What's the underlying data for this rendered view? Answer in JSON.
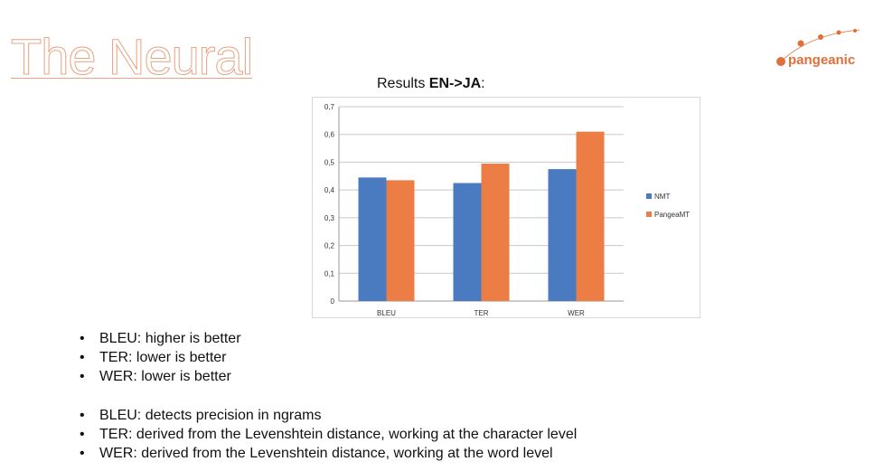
{
  "slide": {
    "title": "The Neural"
  },
  "logo": {
    "text": "pangeanic"
  },
  "chart_heading": {
    "prefix": "Results ",
    "bold": "EN->JA",
    "suffix": ":"
  },
  "colors": {
    "title_outline": "#e9a383",
    "nmt": "#4a7ac0",
    "pangea": "#ec7d45",
    "logo": "#e0703a"
  },
  "chart_data": {
    "type": "bar",
    "title": "Results EN->JA:",
    "categories": [
      "BLEU",
      "TER",
      "WER"
    ],
    "series": [
      {
        "name": "NMT",
        "values": [
          0.445,
          0.425,
          0.475
        ],
        "color": "#4a7ac0"
      },
      {
        "name": "PangeaMT",
        "values": [
          0.435,
          0.495,
          0.61
        ],
        "color": "#ec7d45"
      }
    ],
    "ylim": [
      0,
      0.7
    ],
    "yticks": [
      "0",
      "0,1",
      "0,2",
      "0,3",
      "0,4",
      "0,5",
      "0,6",
      "0,7"
    ],
    "grid": true,
    "legend_position": "right"
  },
  "bullets_group1": [
    "BLEU: higher is better",
    "TER: lower is better",
    "WER: lower is better"
  ],
  "bullets_group2": [
    "BLEU: detects precision in ngrams",
    "TER: derived from the Levenshtein distance, working at the character level",
    "WER: derived from the Levenshtein distance, working at the word level"
  ]
}
